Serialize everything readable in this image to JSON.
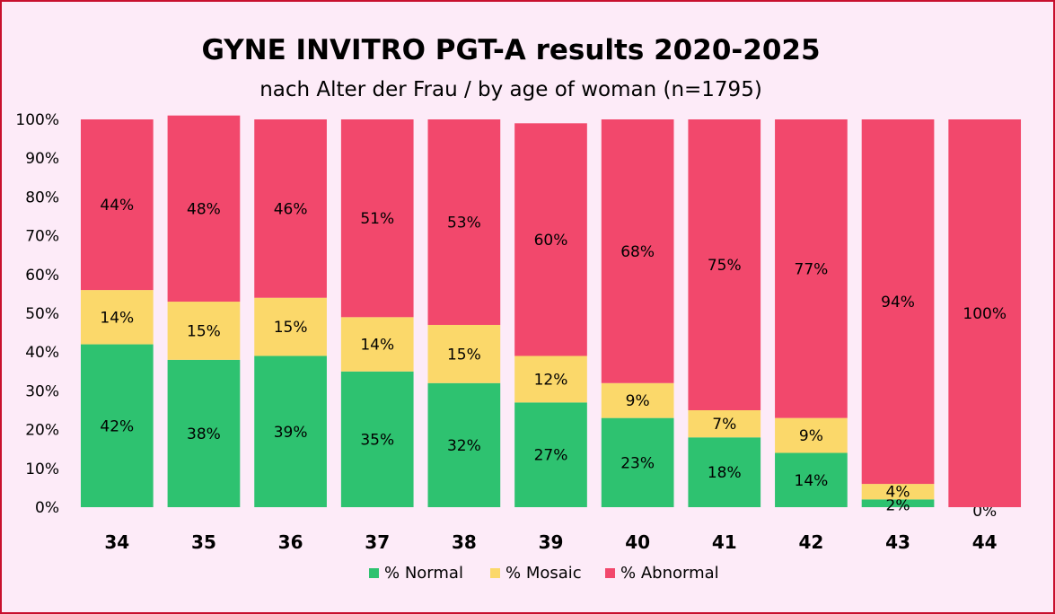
{
  "chart_data": {
    "type": "bar",
    "stacked": true,
    "percent_stacked": true,
    "title": "GYNE INVITRO PGT-A results 2020-2025",
    "subtitle": "nach Alter der Frau / by age of woman (n=1795)",
    "categories": [
      "34",
      "35",
      "36",
      "37",
      "38",
      "39",
      "40",
      "41",
      "42",
      "43",
      "44"
    ],
    "series": [
      {
        "name": "% Normal",
        "color": "#2ec270",
        "values": [
          42,
          38,
          39,
          35,
          32,
          27,
          23,
          18,
          14,
          2,
          0
        ],
        "labels": [
          "42%",
          "38%",
          "39%",
          "35%",
          "32%",
          "27%",
          "23%",
          "18%",
          "14%",
          "2%",
          "0%"
        ]
      },
      {
        "name": "% Mosaic",
        "color": "#fbd86a",
        "values": [
          14,
          15,
          15,
          14,
          15,
          12,
          9,
          7,
          9,
          4,
          0
        ],
        "labels": [
          "14%",
          "15%",
          "15%",
          "14%",
          "15%",
          "12%",
          "9%",
          "7%",
          "9%",
          "4%",
          ""
        ]
      },
      {
        "name": "% Abnormal",
        "color": "#f2486c",
        "values": [
          44,
          48,
          46,
          51,
          53,
          60,
          68,
          75,
          77,
          94,
          100
        ],
        "labels": [
          "44%",
          "48%",
          "46%",
          "51%",
          "53%",
          "60%",
          "68%",
          "75%",
          "77%",
          "94%",
          "100%"
        ]
      }
    ],
    "y_ticks": [
      "0%",
      "10%",
      "20%",
      "30%",
      "40%",
      "50%",
      "60%",
      "70%",
      "80%",
      "90%",
      "100%"
    ],
    "ylim": [
      0,
      100
    ],
    "xlabel": "",
    "ylabel": "",
    "grid": false,
    "legend": "bottom"
  },
  "colors": {
    "background": "#fdebf8",
    "border": "#c8102e"
  }
}
